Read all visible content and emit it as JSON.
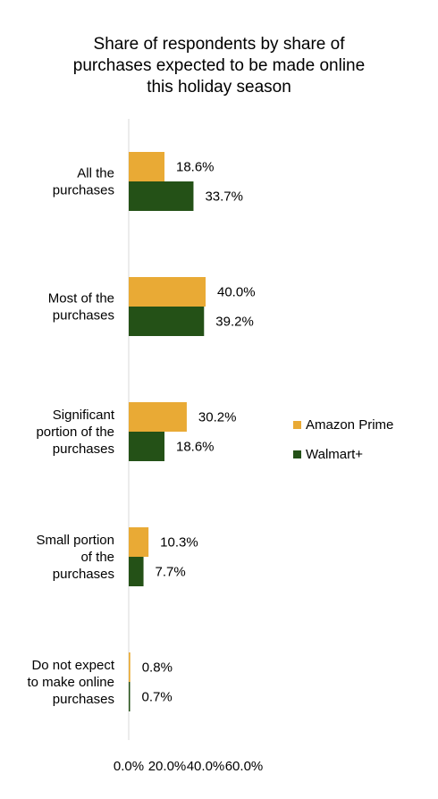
{
  "chart_data": {
    "type": "bar",
    "orientation": "horizontal",
    "title": "Share of respondents by share of\npurchases expected to be made online\nthis holiday season",
    "categories": [
      [
        "All the",
        "purchases"
      ],
      [
        "Most of the",
        "purchases"
      ],
      [
        "Significant",
        "portion of the",
        "purchases"
      ],
      [
        "Small portion",
        "of the",
        "purchases"
      ],
      [
        "Do not expect",
        "to make online",
        "purchases"
      ]
    ],
    "series": [
      {
        "name": "Amazon Prime",
        "color": "#e9aa35",
        "values": [
          18.6,
          40.0,
          30.2,
          10.3,
          0.8
        ],
        "labels": [
          "18.6%",
          "40.0%",
          "30.2%",
          "10.3%",
          "0.8%"
        ]
      },
      {
        "name": "Walmart+",
        "color": "#245117",
        "values": [
          33.7,
          39.2,
          18.6,
          7.7,
          0.7
        ],
        "labels": [
          "33.7%",
          "39.2%",
          "18.6%",
          "7.7%",
          "0.7%"
        ]
      }
    ],
    "xlim": [
      0,
      60
    ],
    "xticks": [
      "0.0%",
      "20.0%",
      "40.0%",
      "60.0%"
    ],
    "xtick_values": [
      0,
      20,
      40,
      60
    ],
    "grid": false,
    "legend_position": "right",
    "axis_line_color": "#d9d9d9"
  }
}
